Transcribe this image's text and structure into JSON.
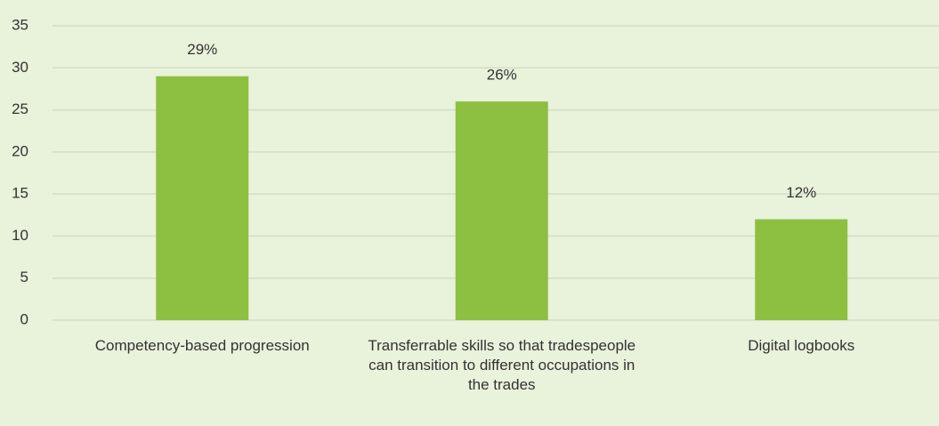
{
  "chart_data": {
    "type": "bar",
    "categories": [
      "Competency-based progression",
      "Transferrable skills so that tradespeople can transition to different occupations in the trades",
      "Digital logbooks"
    ],
    "values": [
      29,
      26,
      12
    ],
    "value_labels": [
      "29%",
      "26%",
      "12%"
    ],
    "color": "#8dc041",
    "ylim": [
      0,
      35
    ],
    "yticks": [
      0,
      5,
      10,
      15,
      20,
      25,
      30,
      35
    ],
    "grid": true
  }
}
